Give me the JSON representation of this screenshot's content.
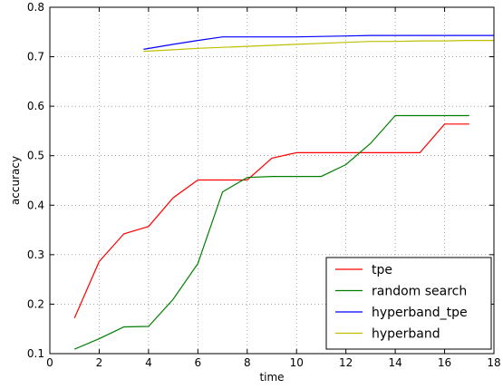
{
  "chart_data": {
    "type": "line",
    "xlabel": "time",
    "ylabel": "accuracy",
    "xlim": [
      0,
      18
    ],
    "ylim": [
      0.1,
      0.8
    ],
    "xticks": [
      0,
      2,
      4,
      6,
      8,
      10,
      12,
      14,
      16,
      18
    ],
    "yticks": [
      0.1,
      0.2,
      0.3,
      0.4,
      0.5,
      0.6,
      0.7,
      0.8
    ],
    "grid": true,
    "legend_position": "lower right",
    "series": [
      {
        "name": "tpe",
        "color": "#ff0000",
        "x": [
          1,
          2,
          3,
          4,
          5,
          6,
          7,
          8,
          9,
          10,
          11,
          12,
          13,
          14,
          15,
          16,
          17
        ],
        "y": [
          0.172,
          0.286,
          0.342,
          0.357,
          0.415,
          0.451,
          0.451,
          0.451,
          0.495,
          0.506,
          0.506,
          0.506,
          0.506,
          0.506,
          0.506,
          0.564,
          0.564
        ]
      },
      {
        "name": "random search",
        "color": "#008000",
        "x": [
          1,
          2,
          3,
          4,
          5,
          6,
          7,
          8,
          9,
          10,
          11,
          12,
          13,
          14,
          15,
          16,
          17
        ],
        "y": [
          0.109,
          0.13,
          0.154,
          0.155,
          0.21,
          0.282,
          0.427,
          0.456,
          0.458,
          0.458,
          0.458,
          0.482,
          0.525,
          0.581,
          0.581,
          0.581,
          0.581
        ]
      },
      {
        "name": "hyperband_tpe",
        "color": "#0000ff",
        "x": [
          3.8,
          5,
          6,
          7,
          8,
          9,
          10,
          11,
          12,
          13,
          14,
          15,
          16,
          17,
          18
        ],
        "y": [
          0.715,
          0.725,
          0.733,
          0.74,
          0.74,
          0.74,
          0.74,
          0.741,
          0.742,
          0.743,
          0.743,
          0.743,
          0.743,
          0.743,
          0.743
        ]
      },
      {
        "name": "hyperband",
        "color": "#bfbf00",
        "x": [
          3.8,
          5,
          6,
          7,
          8,
          9,
          10,
          11,
          12,
          13,
          14,
          15,
          16,
          17,
          18
        ],
        "y": [
          0.711,
          0.714,
          0.717,
          0.719,
          0.721,
          0.723,
          0.725,
          0.727,
          0.729,
          0.731,
          0.731,
          0.732,
          0.732,
          0.733,
          0.733
        ]
      }
    ]
  }
}
